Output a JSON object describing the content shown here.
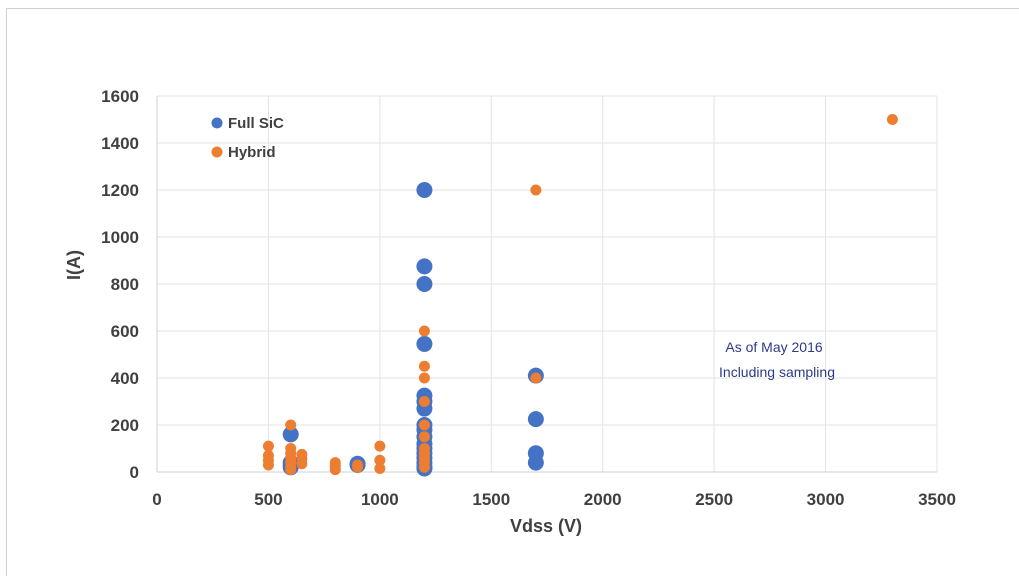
{
  "chart_data": {
    "type": "scatter",
    "title": "",
    "xlabel": "Vdss (V)",
    "ylabel": "I(A)",
    "xlim": [
      0,
      3500
    ],
    "ylim": [
      0,
      1600
    ],
    "x_ticks": [
      0,
      500,
      1000,
      1500,
      2000,
      2500,
      3000,
      3500
    ],
    "y_ticks": [
      0,
      200,
      400,
      600,
      800,
      1000,
      1200,
      1400,
      1600
    ],
    "grid": true,
    "legend_position": "top-left",
    "annotations": [
      "As of May 2016",
      "Including sampling"
    ],
    "series": [
      {
        "name": "Full SiC",
        "color": "#4472c4",
        "points": [
          [
            600,
            160
          ],
          [
            600,
            40
          ],
          [
            600,
            30
          ],
          [
            600,
            20
          ],
          [
            900,
            30
          ],
          [
            900,
            35
          ],
          [
            1200,
            1200
          ],
          [
            1200,
            875
          ],
          [
            1200,
            800
          ],
          [
            1200,
            545
          ],
          [
            1200,
            325
          ],
          [
            1200,
            300
          ],
          [
            1200,
            270
          ],
          [
            1200,
            200
          ],
          [
            1200,
            180
          ],
          [
            1200,
            150
          ],
          [
            1200,
            120
          ],
          [
            1200,
            100
          ],
          [
            1200,
            80
          ],
          [
            1200,
            60
          ],
          [
            1200,
            40
          ],
          [
            1200,
            25
          ],
          [
            1200,
            15
          ],
          [
            1700,
            410
          ],
          [
            1700,
            225
          ],
          [
            1700,
            80
          ],
          [
            1700,
            40
          ]
        ]
      },
      {
        "name": "Hybrid",
        "color": "#ed7d31",
        "points": [
          [
            500,
            110
          ],
          [
            500,
            70
          ],
          [
            500,
            50
          ],
          [
            500,
            30
          ],
          [
            600,
            200
          ],
          [
            600,
            100
          ],
          [
            600,
            80
          ],
          [
            600,
            60
          ],
          [
            600,
            40
          ],
          [
            600,
            20
          ],
          [
            600,
            10
          ],
          [
            650,
            75
          ],
          [
            650,
            55
          ],
          [
            650,
            35
          ],
          [
            800,
            40
          ],
          [
            800,
            25
          ],
          [
            800,
            10
          ],
          [
            900,
            30
          ],
          [
            900,
            20
          ],
          [
            1000,
            110
          ],
          [
            1000,
            50
          ],
          [
            1000,
            15
          ],
          [
            1200,
            600
          ],
          [
            1200,
            450
          ],
          [
            1200,
            400
          ],
          [
            1200,
            300
          ],
          [
            1200,
            200
          ],
          [
            1200,
            150
          ],
          [
            1200,
            100
          ],
          [
            1200,
            80
          ],
          [
            1200,
            60
          ],
          [
            1200,
            40
          ],
          [
            1200,
            20
          ],
          [
            1700,
            1200
          ],
          [
            1700,
            400
          ],
          [
            3300,
            1500
          ]
        ]
      }
    ]
  }
}
